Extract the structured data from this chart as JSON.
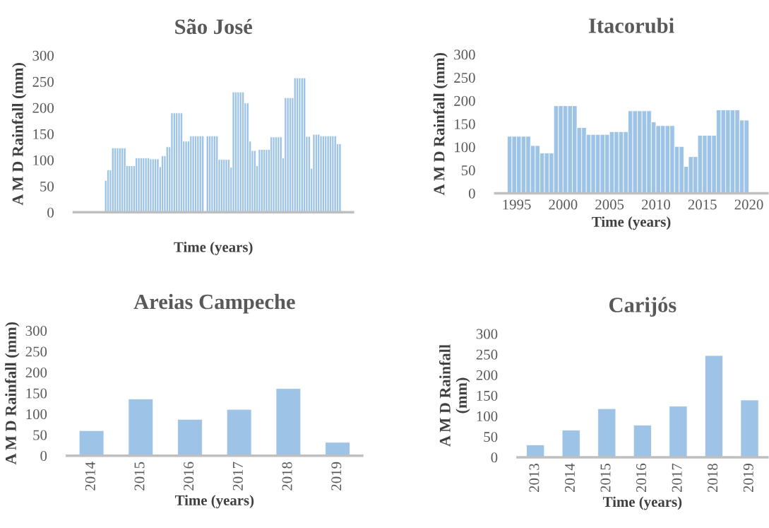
{
  "chart_data": [
    {
      "type": "bar",
      "title": "São José",
      "ylabel": "A M D Rainfall (mm)",
      "xlabel": "Time (years)",
      "tick_labels": "y",
      "color": "#9dc3e6",
      "ylim": [
        0,
        300
      ],
      "yticks": [
        0,
        50,
        100,
        150,
        200,
        250,
        300
      ],
      "categories": [
        null,
        null,
        null,
        null,
        null,
        null,
        null,
        null,
        null,
        null,
        null,
        null,
        null,
        null,
        null,
        null,
        null,
        null,
        null,
        null,
        null,
        null,
        null,
        null,
        null,
        null,
        null,
        null,
        null,
        null,
        null,
        null,
        null,
        null,
        null,
        null,
        null,
        null,
        null,
        null,
        null,
        null,
        null,
        null,
        null,
        null,
        null,
        null,
        null,
        null,
        null,
        null,
        null,
        null,
        null,
        null,
        null,
        null,
        null,
        null,
        null,
        null,
        null,
        null,
        null,
        null,
        null,
        null,
        null,
        null,
        null,
        null,
        null,
        null,
        null,
        null,
        null,
        null,
        null,
        null,
        null,
        null,
        null,
        null,
        null,
        null,
        null,
        null,
        null,
        null,
        null,
        null,
        null,
        null,
        null,
        null,
        null,
        null,
        null,
        null,
        null,
        null,
        null,
        null,
        null,
        null,
        null,
        null,
        null,
        null,
        null,
        null,
        null,
        null,
        null,
        null,
        null,
        null
      ],
      "values": [
        null,
        null,
        null,
        null,
        null,
        null,
        null,
        null,
        null,
        null,
        null,
        null,
        null,
        61,
        81,
        81,
        123,
        123,
        123,
        123,
        123,
        123,
        89,
        89,
        89,
        89,
        104,
        104,
        104,
        104,
        104,
        104,
        102,
        102,
        102,
        102,
        87,
        108,
        108,
        125,
        125,
        190,
        190,
        190,
        190,
        190,
        136,
        136,
        136,
        146,
        146,
        146,
        146,
        146,
        146,
        null,
        146,
        146,
        146,
        146,
        146,
        101,
        101,
        101,
        101,
        101,
        86,
        230,
        230,
        230,
        230,
        230,
        209,
        209,
        136,
        118,
        118,
        89,
        120,
        120,
        120,
        120,
        120,
        144,
        144,
        144,
        144,
        144,
        104,
        219,
        219,
        219,
        219,
        257,
        257,
        257,
        257,
        257,
        145,
        145,
        84,
        149,
        149,
        149,
        146,
        146,
        146,
        146,
        146,
        146,
        146,
        131,
        131,
        null,
        null,
        null,
        null,
        null
      ]
    },
    {
      "type": "bar",
      "title": "Itacorubi",
      "ylabel": "A M D Rainfall (mm)",
      "xlabel": "Time (years)",
      "color": "#9dc3e6",
      "ylim": [
        0,
        300
      ],
      "yticks": [
        0,
        50,
        100,
        150,
        200,
        250,
        300
      ],
      "xlim": [
        1992.7,
        2022
      ],
      "xticks": [
        1995,
        2000,
        2005,
        2010,
        2015,
        2020
      ],
      "x": [
        1994.25,
        1994.75,
        1995.25,
        1995.75,
        1996.25,
        1996.75,
        1997.25,
        1997.75,
        1998.25,
        1998.75,
        1999.25,
        1999.75,
        2000.25,
        2000.75,
        2001.25,
        2001.75,
        2002.25,
        2002.75,
        2003.25,
        2003.75,
        2004.25,
        2004.75,
        2005.25,
        2005.75,
        2006.25,
        2006.75,
        2007.25,
        2007.75,
        2008.25,
        2008.75,
        2009.25,
        2009.75,
        2010.25,
        2010.75,
        2011.25,
        2011.75,
        2012.25,
        2012.75,
        2013.25,
        2013.75,
        2014.25,
        2014.75,
        2015.25,
        2015.75,
        2016.25,
        2016.75,
        2017.25,
        2017.75,
        2018.25,
        2018.75,
        2019.25,
        2019.75
      ],
      "values": [
        123,
        123,
        123,
        123,
        123,
        103,
        103,
        87,
        87,
        87,
        189,
        189,
        189,
        189,
        189,
        142,
        142,
        127,
        127,
        127,
        127,
        127,
        133,
        133,
        133,
        133,
        178,
        178,
        178,
        178,
        178,
        154,
        146,
        146,
        146,
        146,
        101,
        101,
        58,
        79,
        79,
        125,
        125,
        125,
        125,
        180,
        180,
        180,
        180,
        180,
        158,
        158
      ]
    },
    {
      "type": "bar",
      "title": "Areias Campeche",
      "ylabel": "A M D Rainfall (mm)",
      "xlabel": "Time (years)",
      "color": "#9dc3e6",
      "ylim": [
        0,
        300
      ],
      "yticks": [
        0,
        50,
        100,
        150,
        200,
        250,
        300
      ],
      "categories": [
        "2014",
        "2015",
        "2016",
        "2017",
        "2018",
        "2019"
      ],
      "values": [
        60,
        136,
        87,
        111,
        161,
        32
      ]
    },
    {
      "type": "bar",
      "title": "Carijós",
      "ylabel": "A M D Rainfall\n(mm)",
      "xlabel": "Time (years)",
      "color": "#9dc3e6",
      "ylim": [
        0,
        300
      ],
      "yticks": [
        0,
        50,
        100,
        150,
        200,
        250,
        300
      ],
      "categories": [
        "2013",
        "2014",
        "2015",
        "2016",
        "2017",
        "2018",
        "2019"
      ],
      "values": [
        30,
        66,
        118,
        78,
        124,
        247,
        139
      ]
    }
  ]
}
